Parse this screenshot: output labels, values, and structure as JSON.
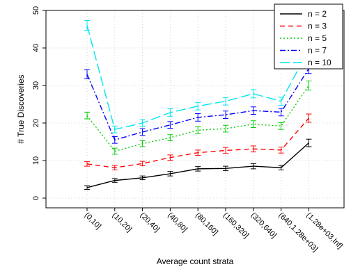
{
  "chart_data": {
    "type": "line",
    "xlabel": "Average count strata",
    "ylabel": "# True Discoveries",
    "ylim": [
      0,
      50
    ],
    "yticks": [
      0,
      10,
      20,
      30,
      40,
      50
    ],
    "categories": [
      "(0,10]",
      "(10,20]",
      "(20,40]",
      "(40,80]",
      "(80,160]",
      "(160,320]",
      "(320,640]",
      "(640,1.28e+03]",
      "(1.28e+03,Inf]"
    ],
    "grid": true,
    "legend_position": "top-right",
    "series": [
      {
        "name": "n = 2",
        "color": "#000000",
        "dash": "solid",
        "values": [
          2.8,
          4.7,
          5.4,
          6.5,
          7.8,
          7.9,
          8.5,
          8.1,
          14.7
        ],
        "errors": [
          0.5,
          0.5,
          0.5,
          0.6,
          0.6,
          0.6,
          0.7,
          0.6,
          1.0
        ]
      },
      {
        "name": "n = 3",
        "color": "#ff0000",
        "dash": "dashed",
        "values": [
          9.1,
          8.1,
          9.2,
          10.8,
          12.1,
          12.7,
          13.1,
          12.8,
          21.3
        ],
        "errors": [
          0.6,
          0.6,
          0.6,
          0.7,
          0.7,
          0.8,
          0.8,
          0.8,
          1.1
        ]
      },
      {
        "name": "n = 5",
        "color": "#00cd00",
        "dash": "dotted",
        "values": [
          22.0,
          12.5,
          14.5,
          16.1,
          18.1,
          18.5,
          19.7,
          19.2,
          30.0
        ],
        "errors": [
          0.9,
          0.8,
          0.8,
          0.8,
          0.9,
          0.9,
          0.9,
          0.9,
          1.2
        ]
      },
      {
        "name": "n = 7",
        "color": "#0000ff",
        "dash": "dashdot",
        "values": [
          33.0,
          15.5,
          17.6,
          19.5,
          21.5,
          22.2,
          23.3,
          22.9,
          34.5
        ],
        "errors": [
          1.2,
          0.9,
          0.9,
          0.9,
          1.0,
          1.0,
          1.0,
          1.0,
          1.3
        ]
      },
      {
        "name": "n = 10",
        "color": "#00e5ee",
        "dash": "longdash",
        "values": [
          46.0,
          18.3,
          20.0,
          22.8,
          24.5,
          25.8,
          27.8,
          25.8,
          39.5
        ],
        "errors": [
          1.3,
          0.9,
          0.9,
          1.0,
          1.0,
          1.0,
          1.1,
          1.1,
          1.4
        ]
      }
    ]
  }
}
